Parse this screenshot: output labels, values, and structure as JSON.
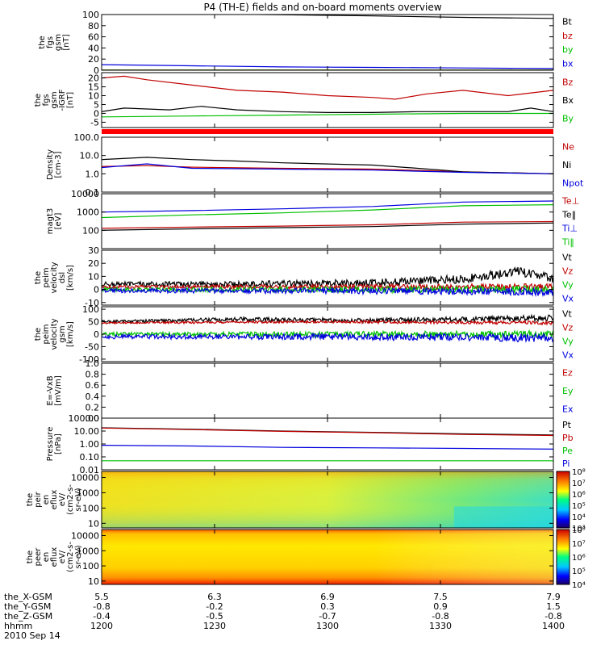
{
  "chart_data": {
    "type": "line",
    "title": "P4 (TH-E) fields and on-board moments overview",
    "date": "2010 Sep 14",
    "x_axis": {
      "ticks": [
        "1200",
        "1230",
        "1300",
        "1330",
        "1400"
      ],
      "rows": [
        {
          "label": "the_X-GSM",
          "values": [
            "5.5",
            "6.3",
            "6.9",
            "7.5",
            "7.9"
          ]
        },
        {
          "label": "the_Y-GSM",
          "values": [
            "-0.8",
            "-0.2",
            "0.3",
            "0.9",
            "1.5"
          ]
        },
        {
          "label": "the_Z-GSM",
          "values": [
            "-0.4",
            "-0.5",
            "-0.7",
            "-0.8",
            "-0.8"
          ]
        },
        {
          "label": "hhmm",
          "values": [
            "1200",
            "1230",
            "1300",
            "1330",
            "1400"
          ]
        }
      ]
    },
    "panels": [
      {
        "id": "fgs",
        "ylabel": [
          "the",
          "fgs",
          "gsm",
          "[nT]"
        ],
        "scale": "linear",
        "ylim": [
          0,
          100
        ],
        "ticks": [
          {
            "v": 0,
            "t": "0"
          },
          {
            "v": 20,
            "t": "20"
          },
          {
            "v": 40,
            "t": "40"
          },
          {
            "v": 60,
            "t": "60"
          },
          {
            "v": 80,
            "t": "80"
          },
          {
            "v": 100,
            "t": "100"
          }
        ],
        "series": [
          {
            "name": "Bt",
            "color": "#000000",
            "x": [
              0,
              0.2,
              0.4,
              0.6,
              0.8,
              1.0
            ],
            "y": [
              103,
              101.5,
              99.5,
              97.5,
              95,
              93
            ]
          },
          {
            "name": "bz",
            "color": "#c00000",
            "x": [
              0,
              1.0
            ],
            "y": [
              0.5,
              0.5
            ]
          },
          {
            "name": "by",
            "color": "#00c000",
            "x": [
              0,
              1.0
            ],
            "y": [
              0.3,
              0.3
            ]
          },
          {
            "name": "bx",
            "color": "#0000dd",
            "x": [
              0,
              0.2,
              0.4,
              0.6,
              0.8,
              1.0
            ],
            "y": [
              10,
              8,
              6,
              5,
              4,
              3
            ]
          }
        ]
      },
      {
        "id": "fgs-dip",
        "ylabel": [
          "the",
          "fgs",
          "gsm",
          "-IGRF",
          "[nT]"
        ],
        "scale": "linear",
        "ylim": [
          -8,
          23
        ],
        "ticks": [
          {
            "v": -5,
            "t": "-5"
          },
          {
            "v": 0,
            "t": "0"
          },
          {
            "v": 5,
            "t": "5"
          },
          {
            "v": 10,
            "t": "10"
          },
          {
            "v": 15,
            "t": "15"
          },
          {
            "v": 20,
            "t": "20"
          }
        ],
        "series": [
          {
            "name": "Bz",
            "color": "#c00000",
            "x": [
              0,
              0.05,
              0.1,
              0.2,
              0.3,
              0.4,
              0.5,
              0.6,
              0.65,
              0.72,
              0.8,
              0.9,
              1.0
            ],
            "y": [
              20,
              21,
              19,
              16,
              13,
              12,
              10,
              9,
              8,
              11,
              13,
              10,
              13
            ]
          },
          {
            "name": "Bx",
            "color": "#000000",
            "x": [
              0,
              0.05,
              0.15,
              0.22,
              0.3,
              0.4,
              0.5,
              0.6,
              0.7,
              0.8,
              0.9,
              0.95,
              1.0
            ],
            "y": [
              1,
              3,
              2,
              4,
              2,
              1,
              0.5,
              0.5,
              1,
              1,
              1,
              3,
              1
            ]
          },
          {
            "name": "By",
            "color": "#00c000",
            "x": [
              0,
              0.2,
              0.4,
              0.6,
              0.8,
              1.0
            ],
            "y": [
              -2,
              -1.5,
              -1,
              -0.5,
              0,
              0
            ]
          }
        ]
      },
      {
        "id": "density",
        "ylabel": [
          "Density",
          "[cm-3]"
        ],
        "scale": "log",
        "ylim": [
          0.1,
          100
        ],
        "ticks": [
          {
            "v": 0.1,
            "t": "0.1"
          },
          {
            "v": 1,
            "t": "1.0"
          },
          {
            "v": 10,
            "t": "10.0"
          },
          {
            "v": 100,
            "t": "100.0"
          }
        ],
        "series": [
          {
            "name": "Ne",
            "color": "#c00000",
            "x": [
              0,
              0.1,
              0.2,
              0.4,
              0.6,
              0.8,
              1.0
            ],
            "y": [
              2.5,
              2.8,
              2.3,
              2.0,
              1.8,
              1.3,
              1.0
            ]
          },
          {
            "name": "Ni",
            "color": "#000000",
            "x": [
              0,
              0.1,
              0.2,
              0.3,
              0.4,
              0.6,
              0.7,
              0.8,
              1.0
            ],
            "y": [
              6,
              8,
              6,
              5,
              4,
              3,
              2,
              1.3,
              1.0
            ]
          },
          {
            "name": "Npot",
            "color": "#0000dd",
            "x": [
              0,
              0.1,
              0.2,
              0.4,
              0.6,
              0.8,
              1.0
            ],
            "y": [
              2.2,
              3.5,
              2.0,
              1.8,
              1.6,
              1.2,
              1.0
            ]
          }
        ]
      },
      {
        "id": "temperature",
        "ylabel": [
          "magt3",
          "[eV]"
        ],
        "scale": "log",
        "ylim": [
          10,
          10000
        ],
        "ticks": [
          {
            "v": 100,
            "t": "100"
          },
          {
            "v": 1000,
            "t": "1000"
          },
          {
            "v": 10000,
            "t": "10000"
          }
        ],
        "series": [
          {
            "name": "Te⊥",
            "color": "#c00000",
            "x": [
              0,
              0.2,
              0.4,
              0.6,
              0.8,
              1.0
            ],
            "y": [
              130,
              150,
              170,
              200,
              280,
              300
            ]
          },
          {
            "name": "Te‖",
            "color": "#000000",
            "x": [
              0,
              0.2,
              0.4,
              0.6,
              0.8,
              1.0
            ],
            "y": [
              100,
              120,
              140,
              160,
              220,
              250
            ]
          },
          {
            "name": "Ti⊥",
            "color": "#0000dd",
            "x": [
              0,
              0.2,
              0.4,
              0.6,
              0.8,
              1.0
            ],
            "y": [
              1000,
              1200,
              1500,
              2000,
              3500,
              4000
            ]
          },
          {
            "name": "Ti‖",
            "color": "#00c000",
            "x": [
              0,
              0.2,
              0.4,
              0.6,
              0.8,
              1.0
            ],
            "y": [
              500,
              700,
              900,
              1300,
              2200,
              2500
            ]
          }
        ]
      },
      {
        "id": "peim-velocity-dsl",
        "ylabel": [
          "the",
          "peim",
          "velocity",
          "dsl",
          "[km/s]"
        ],
        "scale": "linear",
        "ylim": [
          -12,
          30
        ],
        "ticks": [
          {
            "v": -10,
            "t": "-10"
          },
          {
            "v": 0,
            "t": "0"
          },
          {
            "v": 10,
            "t": "10"
          },
          {
            "v": 20,
            "t": "20"
          },
          {
            "v": 30,
            "t": "30"
          }
        ],
        "series": [
          {
            "name": "Vt",
            "color": "#000000",
            "x": [
              0,
              0.3,
              0.6,
              0.8,
              0.92,
              1.0
            ],
            "y": [
              4,
              4,
              5,
              8,
              14,
              8
            ],
            "noise": 3
          },
          {
            "name": "Vz",
            "color": "#c00000",
            "x": [
              0,
              0.5,
              1.0
            ],
            "y": [
              2,
              2,
              2
            ],
            "noise": 2
          },
          {
            "name": "Vy",
            "color": "#00c000",
            "x": [
              0,
              0.5,
              1.0
            ],
            "y": [
              0,
              0,
              0
            ],
            "noise": 2.5
          },
          {
            "name": "Vx",
            "color": "#0000dd",
            "x": [
              0,
              0.5,
              1.0
            ],
            "y": [
              -1,
              -1,
              -2
            ],
            "noise": 2.5
          }
        ]
      },
      {
        "id": "peim-velocity-gsm",
        "ylabel": [
          "the",
          "peim",
          "velocity",
          "gsm",
          "[km/s]"
        ],
        "scale": "linear",
        "ylim": [
          -110,
          110
        ],
        "ticks": [
          {
            "v": -100,
            "t": "-100"
          },
          {
            "v": -50,
            "t": "-50"
          },
          {
            "v": 0,
            "t": "0"
          },
          {
            "v": 50,
            "t": "50"
          },
          {
            "v": 100,
            "t": "100"
          }
        ],
        "series": [
          {
            "name": "Vt",
            "color": "#000000",
            "x": [
              0,
              0.3,
              0.6,
              1.0
            ],
            "y": [
              50,
              60,
              55,
              65
            ],
            "noise": 10
          },
          {
            "name": "Vz",
            "color": "#c00000",
            "x": [
              0,
              0.5,
              1.0
            ],
            "y": [
              45,
              50,
              45
            ],
            "noise": 6
          },
          {
            "name": "Vy",
            "color": "#00c000",
            "x": [
              0,
              0.5,
              1.0
            ],
            "y": [
              0,
              0,
              0
            ],
            "noise": 12
          },
          {
            "name": "Vx",
            "color": "#0000dd",
            "x": [
              0,
              0.5,
              1.0
            ],
            "y": [
              -10,
              -10,
              -15
            ],
            "noise": 14
          }
        ]
      },
      {
        "id": "e-field",
        "ylabel": [
          "E=-VxB",
          "[mV/m]"
        ],
        "scale": "linear",
        "ylim": [
          0,
          1
        ],
        "ticks": [
          {
            "v": 0,
            "t": "0.0"
          },
          {
            "v": 0.2,
            "t": "0.2"
          },
          {
            "v": 0.4,
            "t": "0.4"
          },
          {
            "v": 0.6,
            "t": "0.6"
          },
          {
            "v": 0.8,
            "t": "0.8"
          },
          {
            "v": 1.0,
            "t": "1.0"
          }
        ],
        "series": [
          {
            "name": "Ez",
            "color": "#c00000",
            "x": [],
            "y": []
          },
          {
            "name": "Ey",
            "color": "#00c000",
            "x": [],
            "y": []
          },
          {
            "name": "Ex",
            "color": "#0000dd",
            "x": [],
            "y": []
          }
        ]
      },
      {
        "id": "pressure",
        "ylabel": [
          "Pressure",
          "[nPa]"
        ],
        "scale": "log",
        "ylim": [
          0.01,
          100
        ],
        "ticks": [
          {
            "v": 0.01,
            "t": "0.01"
          },
          {
            "v": 0.1,
            "t": "0.10"
          },
          {
            "v": 1,
            "t": "1.00"
          },
          {
            "v": 10,
            "t": "10.00"
          },
          {
            "v": 100,
            "t": "100.00"
          }
        ],
        "series": [
          {
            "name": "Pt",
            "color": "#000000",
            "x": [
              0,
              0.2,
              0.4,
              0.6,
              0.8,
              1.0
            ],
            "y": [
              18,
              14,
              10,
              8,
              6,
              5
            ]
          },
          {
            "name": "Pb",
            "color": "#c00000",
            "x": [
              0,
              0.2,
              0.4,
              0.6,
              0.8,
              1.0
            ],
            "y": [
              17,
              13,
              9.5,
              7.5,
              5.5,
              4.5
            ]
          },
          {
            "name": "Pe",
            "color": "#00c000",
            "x": [
              0,
              0.2,
              0.4,
              0.6,
              0.8,
              1.0
            ],
            "y": [
              0.05,
              0.05,
              0.05,
              0.05,
              0.05,
              0.05
            ]
          },
          {
            "name": "Pi",
            "color": "#0000dd",
            "x": [
              0,
              0.2,
              0.4,
              0.6,
              0.8,
              1.0
            ],
            "y": [
              0.8,
              0.7,
              0.55,
              0.5,
              0.45,
              0.4
            ]
          }
        ]
      },
      {
        "id": "peir-eflux",
        "type": "heatmap",
        "ylabel": [
          "the",
          "peir",
          "en",
          "eflux",
          "eV/",
          "(cm2-s-",
          "sr-eV)"
        ],
        "scale": "log",
        "ylim": [
          5,
          25000
        ],
        "ticks": [
          {
            "v": 10,
            "t": "10"
          },
          {
            "v": 100,
            "t": "100"
          },
          {
            "v": 1000,
            "t": "1000"
          },
          {
            "v": 10000,
            "t": "10000"
          }
        ],
        "colorbar": {
          "ticks": [
            "10³",
            "10⁴",
            "10⁵",
            "10⁶",
            "10⁷",
            "10⁸"
          ]
        }
      },
      {
        "id": "peer-eflux",
        "type": "heatmap",
        "ylabel": [
          "the",
          "peer",
          "en",
          "eflux",
          "eV/",
          "(cm2-s-",
          "sr-eV)"
        ],
        "scale": "log",
        "ylim": [
          6,
          25000
        ],
        "ticks": [
          {
            "v": 10,
            "t": "10"
          },
          {
            "v": 100,
            "t": "100"
          },
          {
            "v": 1000,
            "t": "1000"
          },
          {
            "v": 10000,
            "t": "10000"
          }
        ],
        "colorbar": {
          "ticks": [
            "10⁴",
            "10⁵",
            "10⁶",
            "10⁷",
            "10⁸"
          ]
        }
      }
    ]
  }
}
